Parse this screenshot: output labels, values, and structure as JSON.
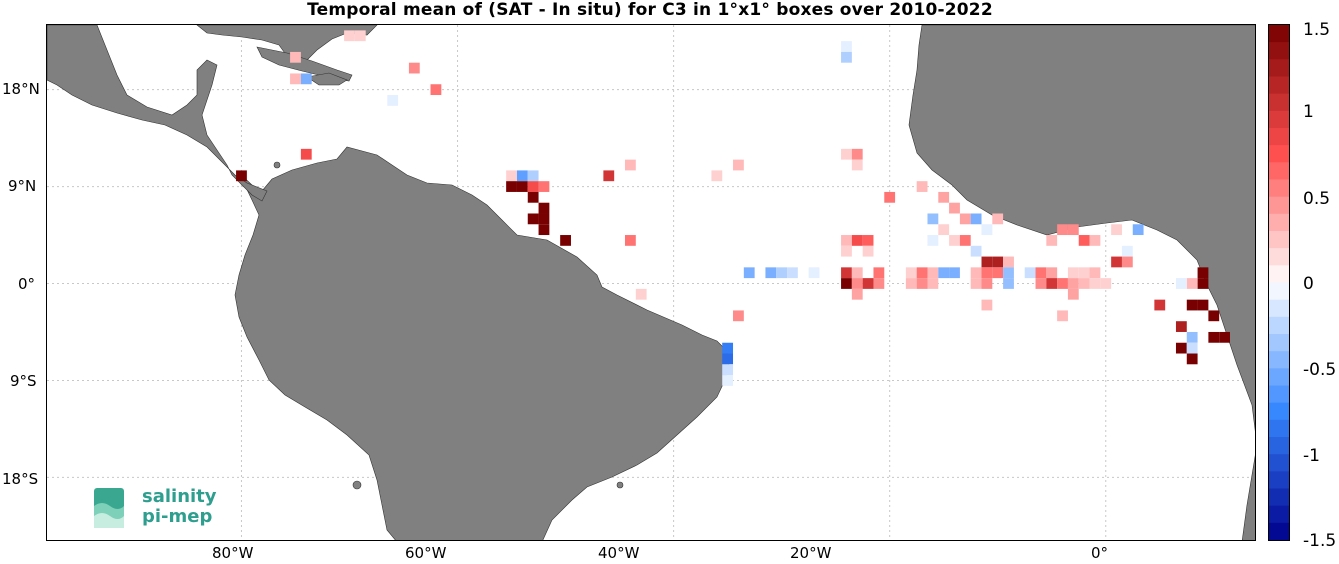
{
  "title": "Temporal mean of (SAT - In situ) for C3 in 1°x1° boxes over 2010-2022",
  "axes": {
    "x_ticks": [
      "80°W",
      "60°W",
      "40°W",
      "20°W",
      "0°"
    ],
    "y_ticks": [
      "18°N",
      "9°N",
      "0°",
      "9°S",
      "18°S"
    ],
    "lon_range": [
      -98,
      14
    ],
    "lat_range": [
      -24,
      24
    ]
  },
  "colorbar": {
    "ticks": [
      "1.5",
      "1",
      "0.5",
      "0",
      "-0.5",
      "-1",
      "-1.5"
    ],
    "range": [
      -1.5,
      1.5
    ],
    "colormap": "blue-white-red"
  },
  "logo": {
    "line1": "salinity",
    "line2": "pi-mep"
  },
  "colors": {
    "land": "#808080",
    "ocean": "#ffffff",
    "grid": "#c8c8c8"
  },
  "chart_data": {
    "type": "heatmap",
    "grid": "1x1 degree boxes",
    "cells": [
      {
        "lon": -70,
        "lat": 23,
        "v": 0.2
      },
      {
        "lon": -69,
        "lat": 23,
        "v": 0.2
      },
      {
        "lon": -75,
        "lat": 21,
        "v": 0.3
      },
      {
        "lon": -64,
        "lat": 20,
        "v": 0.5
      },
      {
        "lon": -75,
        "lat": 19,
        "v": 0.3
      },
      {
        "lon": -74,
        "lat": 19,
        "v": -0.5
      },
      {
        "lon": -62,
        "lat": 18,
        "v": 0.6
      },
      {
        "lon": -66,
        "lat": 17,
        "v": -0.1
      },
      {
        "lon": -74,
        "lat": 12,
        "v": 0.8
      },
      {
        "lon": -80,
        "lat": 10,
        "v": 1.5
      },
      {
        "lon": -55,
        "lat": 10,
        "v": 0.2
      },
      {
        "lon": -54,
        "lat": 10,
        "v": -0.6
      },
      {
        "lon": -53,
        "lat": 10,
        "v": -0.3
      },
      {
        "lon": -55,
        "lat": 9,
        "v": 1.5
      },
      {
        "lon": -54,
        "lat": 9,
        "v": 1.5
      },
      {
        "lon": -53,
        "lat": 9,
        "v": 0.8
      },
      {
        "lon": -52,
        "lat": 9,
        "v": 0.6
      },
      {
        "lon": -53,
        "lat": 8,
        "v": 1.5
      },
      {
        "lon": -52,
        "lat": 7,
        "v": 1.5
      },
      {
        "lon": -53,
        "lat": 6,
        "v": 1.5
      },
      {
        "lon": -52,
        "lat": 6,
        "v": 1.5
      },
      {
        "lon": -52,
        "lat": 5,
        "v": 1.5
      },
      {
        "lon": -50,
        "lat": 4,
        "v": 1.5
      },
      {
        "lon": -46,
        "lat": 10,
        "v": 1.0
      },
      {
        "lon": -44,
        "lat": 11,
        "v": 0.3
      },
      {
        "lon": -44,
        "lat": 4,
        "v": 0.6
      },
      {
        "lon": -43,
        "lat": -1,
        "v": 0.2
      },
      {
        "lon": -36,
        "lat": 10,
        "v": 0.2
      },
      {
        "lon": -34,
        "lat": 11,
        "v": 0.3
      },
      {
        "lon": -34,
        "lat": -3,
        "v": 0.5
      },
      {
        "lon": -35,
        "lat": -6,
        "v": -0.8
      },
      {
        "lon": -35,
        "lat": -7,
        "v": -0.9
      },
      {
        "lon": -35,
        "lat": -8,
        "v": -0.2
      },
      {
        "lon": -35,
        "lat": -9,
        "v": -0.1
      },
      {
        "lon": -24,
        "lat": 22,
        "v": -0.1
      },
      {
        "lon": -24,
        "lat": 21,
        "v": -0.3
      },
      {
        "lon": -24,
        "lat": 12,
        "v": 0.2
      },
      {
        "lon": -23,
        "lat": 12,
        "v": 0.5
      },
      {
        "lon": -23,
        "lat": 11,
        "v": 0.2
      },
      {
        "lon": -20,
        "lat": 8,
        "v": 0.6
      },
      {
        "lon": -17,
        "lat": 9,
        "v": 0.3
      },
      {
        "lon": -15,
        "lat": 8,
        "v": 0.4
      },
      {
        "lon": -16,
        "lat": 6,
        "v": -0.4
      },
      {
        "lon": -14,
        "lat": 7,
        "v": 0.4
      },
      {
        "lon": -13,
        "lat": 6,
        "v": 0.4
      },
      {
        "lon": -12,
        "lat": 6,
        "v": -0.5
      },
      {
        "lon": -11,
        "lat": 5,
        "v": -0.1
      },
      {
        "lon": -10,
        "lat": 6,
        "v": 0.3
      },
      {
        "lon": -16,
        "lat": 4,
        "v": -0.1
      },
      {
        "lon": -15,
        "lat": 5,
        "v": 0.2
      },
      {
        "lon": -14,
        "lat": 4,
        "v": 0.2
      },
      {
        "lon": -13,
        "lat": 4,
        "v": 0.6
      },
      {
        "lon": -12,
        "lat": 3,
        "v": -0.2
      },
      {
        "lon": -24,
        "lat": 4,
        "v": 0.3
      },
      {
        "lon": -23,
        "lat": 4,
        "v": 0.8
      },
      {
        "lon": -22,
        "lat": 4,
        "v": 0.7
      },
      {
        "lon": -24,
        "lat": 3,
        "v": 0.2
      },
      {
        "lon": -22,
        "lat": 3,
        "v": 0.2
      },
      {
        "lon": -4,
        "lat": 5,
        "v": 0.5
      },
      {
        "lon": -3,
        "lat": 5,
        "v": 0.5
      },
      {
        "lon": -2,
        "lat": 4,
        "v": 0.7
      },
      {
        "lon": -1,
        "lat": 4,
        "v": 0.3
      },
      {
        "lon": -5,
        "lat": 4,
        "v": 0.3
      },
      {
        "lon": 1,
        "lat": 5,
        "v": 0.2
      },
      {
        "lon": 3,
        "lat": 5,
        "v": -0.5
      },
      {
        "lon": 2,
        "lat": 3,
        "v": -0.1
      },
      {
        "lon": -11,
        "lat": 2,
        "v": 1.2
      },
      {
        "lon": -10,
        "lat": 2,
        "v": 1.2
      },
      {
        "lon": -9,
        "lat": 2,
        "v": 0.3
      },
      {
        "lon": 1,
        "lat": 2,
        "v": 1.0
      },
      {
        "lon": 2,
        "lat": 2,
        "v": 0.5
      },
      {
        "lon": -33,
        "lat": 1,
        "v": -0.5
      },
      {
        "lon": -31,
        "lat": 1,
        "v": -0.5
      },
      {
        "lon": -30,
        "lat": 1,
        "v": -0.3
      },
      {
        "lon": -29,
        "lat": 1,
        "v": -0.2
      },
      {
        "lon": -27,
        "lat": 1,
        "v": -0.1
      },
      {
        "lon": -24,
        "lat": 1,
        "v": 1.0
      },
      {
        "lon": -23,
        "lat": 1,
        "v": 0.3
      },
      {
        "lon": -21,
        "lat": 1,
        "v": 0.6
      },
      {
        "lon": -18,
        "lat": 1,
        "v": 0.2
      },
      {
        "lon": -17,
        "lat": 1,
        "v": 0.6
      },
      {
        "lon": -16,
        "lat": 1,
        "v": 0.3
      },
      {
        "lon": -15,
        "lat": 1,
        "v": -0.5
      },
      {
        "lon": -14,
        "lat": 1,
        "v": -0.5
      },
      {
        "lon": -12,
        "lat": 1,
        "v": 0.3
      },
      {
        "lon": -11,
        "lat": 1,
        "v": 0.6
      },
      {
        "lon": -10,
        "lat": 1,
        "v": 0.6
      },
      {
        "lon": -9,
        "lat": 1,
        "v": -0.4
      },
      {
        "lon": -7,
        "lat": 1,
        "v": -0.2
      },
      {
        "lon": -6,
        "lat": 1,
        "v": 0.6
      },
      {
        "lon": -5,
        "lat": 1,
        "v": 0.4
      },
      {
        "lon": -3,
        "lat": 1,
        "v": 0.2
      },
      {
        "lon": -2,
        "lat": 1,
        "v": 0.2
      },
      {
        "lon": -1,
        "lat": 1,
        "v": 0.3
      },
      {
        "lon": -24,
        "lat": 0,
        "v": 1.5
      },
      {
        "lon": -23,
        "lat": 0,
        "v": 0.5
      },
      {
        "lon": -22,
        "lat": 0,
        "v": 1.0
      },
      {
        "lon": -21,
        "lat": 0,
        "v": 0.5
      },
      {
        "lon": -18,
        "lat": 0,
        "v": 0.3
      },
      {
        "lon": -17,
        "lat": 0,
        "v": 0.5
      },
      {
        "lon": -16,
        "lat": 0,
        "v": 0.3
      },
      {
        "lon": -12,
        "lat": 0,
        "v": 0.3
      },
      {
        "lon": -11,
        "lat": 0,
        "v": 0.5
      },
      {
        "lon": -9,
        "lat": 0,
        "v": -0.4
      },
      {
        "lon": -6,
        "lat": 0,
        "v": 0.5
      },
      {
        "lon": -5,
        "lat": 0,
        "v": 1.0
      },
      {
        "lon": -4,
        "lat": 0,
        "v": 0.6
      },
      {
        "lon": -3,
        "lat": 0,
        "v": 0.4
      },
      {
        "lon": -2,
        "lat": 0,
        "v": 0.3
      },
      {
        "lon": -1,
        "lat": 0,
        "v": 0.2
      },
      {
        "lon": 0,
        "lat": 0,
        "v": 0.2
      },
      {
        "lon": 9,
        "lat": 1,
        "v": 1.5
      },
      {
        "lon": 9,
        "lat": 0,
        "v": 1.5
      },
      {
        "lon": 8,
        "lat": 0,
        "v": 0.3
      },
      {
        "lon": 7,
        "lat": 0,
        "v": -0.1
      },
      {
        "lon": -23,
        "lat": -1,
        "v": 0.4
      },
      {
        "lon": -3,
        "lat": -1,
        "v": 0.4
      },
      {
        "lon": -11,
        "lat": -2,
        "v": 0.3
      },
      {
        "lon": -4,
        "lat": -3,
        "v": 0.3
      },
      {
        "lon": 5,
        "lat": -2,
        "v": 1.0
      },
      {
        "lon": 8,
        "lat": -2,
        "v": 1.5
      },
      {
        "lon": 9,
        "lat": -2,
        "v": 1.5
      },
      {
        "lon": 10,
        "lat": -3,
        "v": 1.5
      },
      {
        "lon": 7,
        "lat": -4,
        "v": 1.2
      },
      {
        "lon": 10,
        "lat": -5,
        "v": 1.5
      },
      {
        "lon": 11,
        "lat": -5,
        "v": 1.5
      },
      {
        "lon": 8,
        "lat": -5,
        "v": -0.4
      },
      {
        "lon": 7,
        "lat": -6,
        "v": 1.5
      },
      {
        "lon": 8,
        "lat": -6,
        "v": -0.2
      },
      {
        "lon": 8,
        "lat": -7,
        "v": 1.5
      }
    ]
  }
}
